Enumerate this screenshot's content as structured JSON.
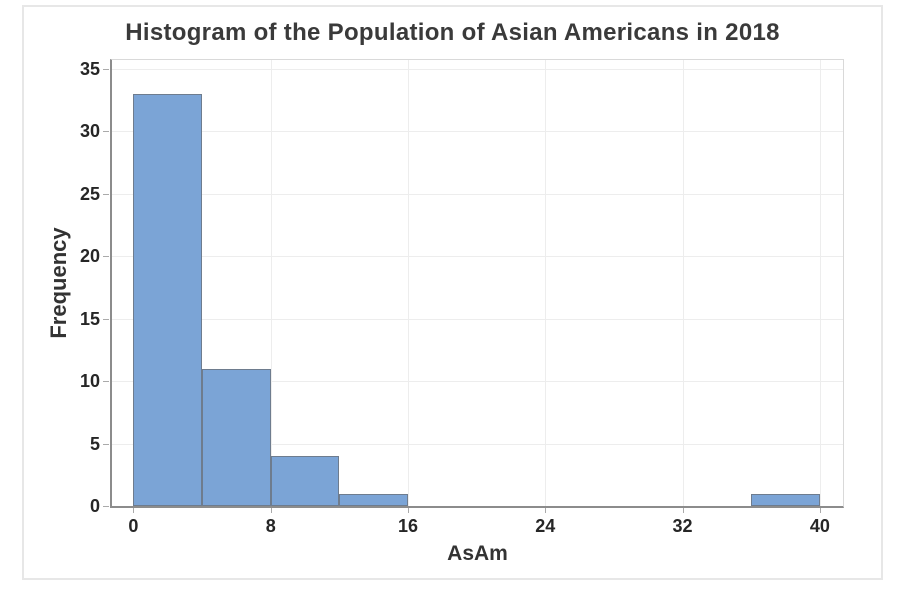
{
  "page": {
    "background": "#ffffff",
    "panel_border_color": "#e7e7e7"
  },
  "chart_data": {
    "type": "bar",
    "subtype": "histogram",
    "title": "Histogram of the Population of Asian Americans in 2018",
    "xlabel": "AsAm",
    "ylabel": "Frequency",
    "bin_width": 4,
    "bins": [
      {
        "start": 0,
        "end": 4,
        "count": 33
      },
      {
        "start": 4,
        "end": 8,
        "count": 11
      },
      {
        "start": 8,
        "end": 12,
        "count": 4
      },
      {
        "start": 12,
        "end": 16,
        "count": 1
      },
      {
        "start": 16,
        "end": 20,
        "count": 0
      },
      {
        "start": 20,
        "end": 24,
        "count": 0
      },
      {
        "start": 24,
        "end": 28,
        "count": 0
      },
      {
        "start": 28,
        "end": 32,
        "count": 0
      },
      {
        "start": 32,
        "end": 36,
        "count": 0
      },
      {
        "start": 36,
        "end": 40,
        "count": 1
      }
    ],
    "x_ticks": [
      0,
      8,
      16,
      24,
      32,
      40
    ],
    "y_ticks": [
      0,
      5,
      10,
      15,
      20,
      25,
      30,
      35
    ],
    "xlim": [
      -1.25,
      41.35
    ],
    "ylim": [
      0,
      35.7
    ],
    "grid": true,
    "legend": "none",
    "bar_fill": "#7ba4d6",
    "bar_border": "#6e7c8e",
    "gridline_color": "#ededed",
    "axis_spine_color": "#8c8c8c"
  }
}
